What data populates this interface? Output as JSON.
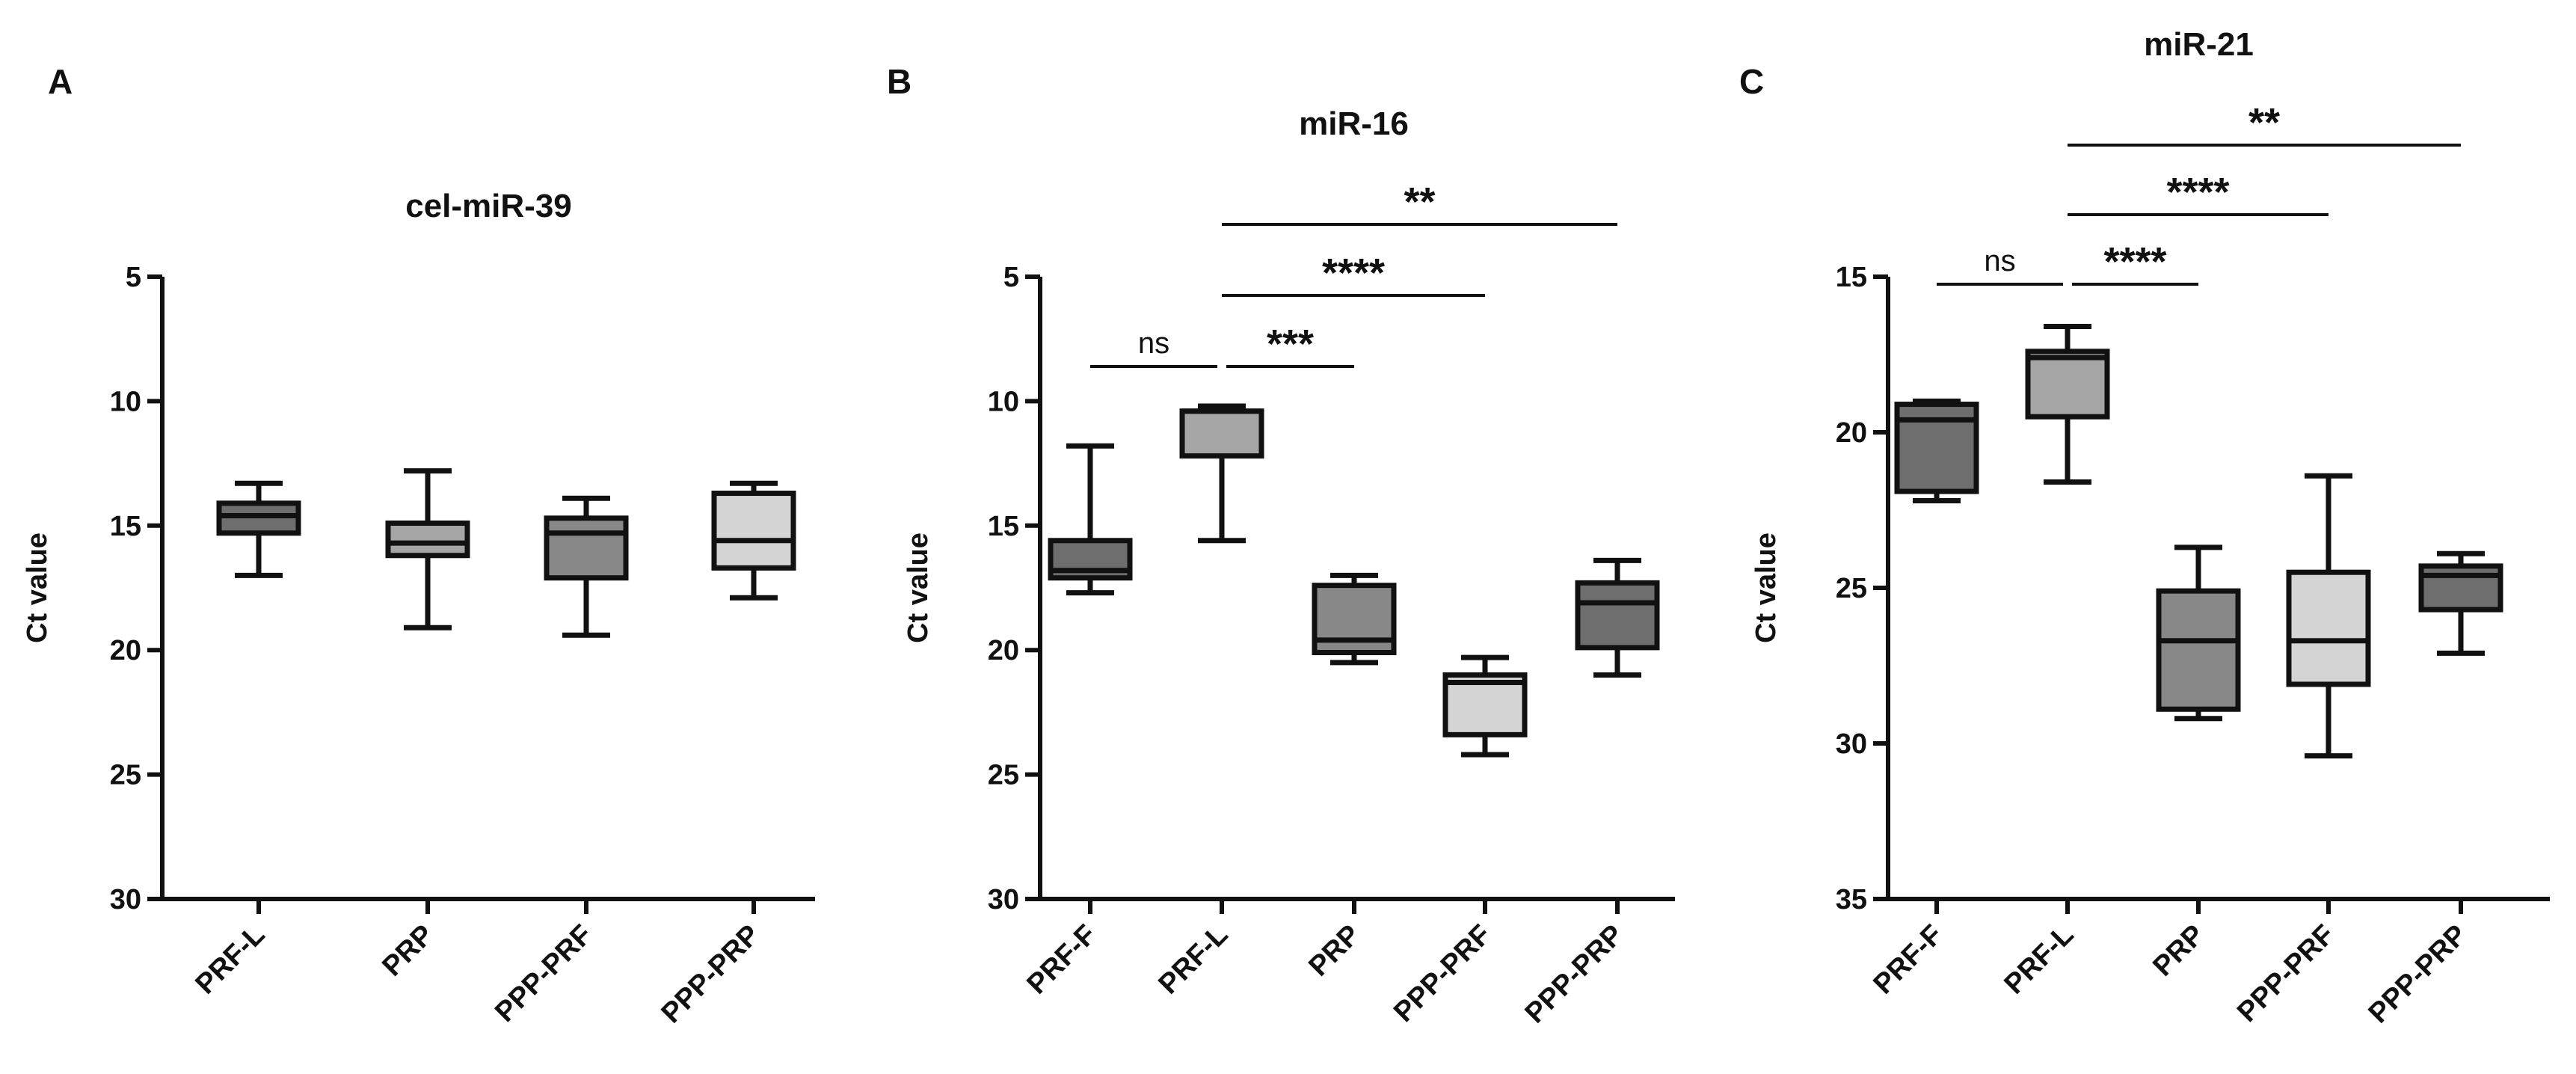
{
  "chart_data": [
    {
      "type": "box",
      "panel": "A",
      "title": "cel-miR-39",
      "xlabel": "",
      "ylabel": "Ct value",
      "ylim": [
        5,
        30
      ],
      "y_inverted": true,
      "yticks": [
        5,
        10,
        15,
        20,
        25,
        30
      ],
      "categories": [
        "PRF-L",
        "PRP",
        "PPP-PRF",
        "PPP-PRP"
      ],
      "boxes": [
        {
          "name": "PRF-L",
          "min": 13.3,
          "q1": 14.1,
          "median": 14.6,
          "q3": 15.3,
          "max": 17.0,
          "color": "#6e6e6e"
        },
        {
          "name": "PRP",
          "min": 12.8,
          "q1": 14.9,
          "median": 15.7,
          "q3": 16.2,
          "max": 19.1,
          "color": "#a5a5a5"
        },
        {
          "name": "PPP-PRF",
          "min": 13.9,
          "q1": 14.7,
          "median": 15.3,
          "q3": 17.1,
          "max": 19.4,
          "color": "#888888"
        },
        {
          "name": "PPP-PRP",
          "min": 13.3,
          "q1": 13.7,
          "median": 15.6,
          "q3": 16.7,
          "max": 17.9,
          "color": "#d4d4d4"
        }
      ],
      "comparisons": []
    },
    {
      "type": "box",
      "panel": "B",
      "title": "miR-16",
      "xlabel": "",
      "ylabel": "Ct value",
      "ylim": [
        5,
        30
      ],
      "y_inverted": true,
      "yticks": [
        5,
        10,
        15,
        20,
        25,
        30
      ],
      "categories": [
        "PRF-F",
        "PRF-L",
        "PRP",
        "PPP-PRF",
        "PPP-PRP"
      ],
      "boxes": [
        {
          "name": "PRF-F",
          "min": 11.8,
          "q1": 15.6,
          "median": 16.8,
          "q3": 17.1,
          "max": 17.7,
          "color": "#6e6e6e"
        },
        {
          "name": "PRF-L",
          "min": 10.2,
          "q1": 10.4,
          "median": 10.4,
          "q3": 12.2,
          "max": 15.6,
          "color": "#a5a5a5"
        },
        {
          "name": "PRP",
          "min": 17.0,
          "q1": 17.4,
          "median": 19.6,
          "q3": 20.1,
          "max": 20.5,
          "color": "#888888"
        },
        {
          "name": "PPP-PRF",
          "min": 20.3,
          "q1": 21.0,
          "median": 21.3,
          "q3": 23.4,
          "max": 24.2,
          "color": "#d4d4d4"
        },
        {
          "name": "PPP-PRP",
          "min": 16.4,
          "q1": 17.3,
          "median": 18.1,
          "q3": 19.9,
          "max": 21.0,
          "color": "#6e6e6e"
        }
      ],
      "comparisons": [
        {
          "label": "ns",
          "from": "PRF-F",
          "to": "PRF-L",
          "level": 0
        },
        {
          "label": "***",
          "from": "PRF-L",
          "to": "PRP",
          "level": 0
        },
        {
          "label": "****",
          "from": "PRF-L",
          "to": "PPP-PRF",
          "level": 1
        },
        {
          "label": "**",
          "from": "PRF-L",
          "to": "PPP-PRP",
          "level": 2
        }
      ]
    },
    {
      "type": "box",
      "panel": "C",
      "title": "miR-21",
      "xlabel": "",
      "ylabel": "Ct value",
      "ylim": [
        15,
        35
      ],
      "y_inverted": true,
      "yticks": [
        15,
        20,
        25,
        30,
        35
      ],
      "categories": [
        "PRF-F",
        "PRF-L",
        "PRP",
        "PPP-PRF",
        "PPP-PRP"
      ],
      "boxes": [
        {
          "name": "PRF-F",
          "min": 19.0,
          "q1": 19.1,
          "median": 19.6,
          "q3": 21.9,
          "max": 22.2,
          "color": "#6e6e6e"
        },
        {
          "name": "PRF-L",
          "min": 16.6,
          "q1": 17.4,
          "median": 17.6,
          "q3": 19.5,
          "max": 21.6,
          "color": "#a5a5a5"
        },
        {
          "name": "PRP",
          "min": 23.7,
          "q1": 25.1,
          "median": 26.7,
          "q3": 28.9,
          "max": 29.2,
          "color": "#888888"
        },
        {
          "name": "PPP-PRF",
          "min": 21.4,
          "q1": 24.5,
          "median": 26.7,
          "q3": 28.1,
          "max": 30.4,
          "color": "#d4d4d4"
        },
        {
          "name": "PPP-PRP",
          "min": 23.9,
          "q1": 24.3,
          "median": 24.6,
          "q3": 25.7,
          "max": 27.1,
          "color": "#6e6e6e"
        }
      ],
      "comparisons": [
        {
          "label": "ns",
          "from": "PRF-F",
          "to": "PRF-L",
          "level": 0
        },
        {
          "label": "****",
          "from": "PRF-L",
          "to": "PRP",
          "level": 0
        },
        {
          "label": "****",
          "from": "PRF-L",
          "to": "PPP-PRF",
          "level": 1
        },
        {
          "label": "**",
          "from": "PRF-L",
          "to": "PPP-PRP",
          "level": 2
        }
      ]
    }
  ]
}
